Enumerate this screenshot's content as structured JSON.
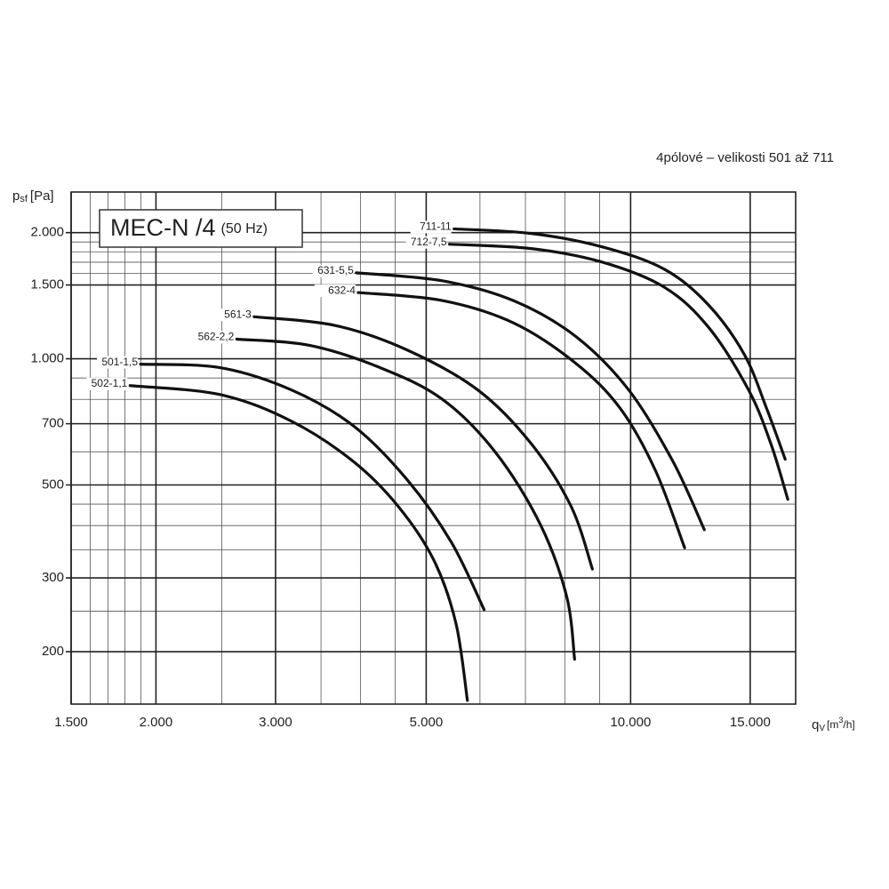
{
  "chart_data": {
    "type": "line",
    "title": "MEC-N /4",
    "title_note": "(50 Hz)",
    "subtitle": "4pólové – velikosti 501 až 711",
    "y_label": {
      "main": "p",
      "sub": "sf",
      "unit": "[Pa]"
    },
    "x_label": {
      "main": "q",
      "sub": "V",
      "unit_a": "[m",
      "sup": "3",
      "unit_b": "/h]"
    },
    "log_x": true,
    "log_y": true,
    "grid": true,
    "xlim": [
      1500,
      17500
    ],
    "ylim": [
      150,
      2500
    ],
    "xticks": [
      {
        "value": 1500,
        "label": "1.500"
      },
      {
        "value": 2000,
        "label": "2.000"
      },
      {
        "value": 3000,
        "label": "3.000"
      },
      {
        "value": 5000,
        "label": "5.000"
      },
      {
        "value": 10000,
        "label": "10.000"
      },
      {
        "value": 15000,
        "label": "15.000"
      }
    ],
    "yticks": [
      200,
      300,
      500,
      700,
      {
        "value": 1000,
        "label": "1.000"
      },
      {
        "value": 1500,
        "label": "1.500"
      },
      {
        "value": 2000,
        "label": "2.000"
      }
    ],
    "xgrid": [
      1600,
      1700,
      1800,
      1900,
      2500,
      3500,
      4000,
      4500,
      6000,
      7000,
      8000,
      9000
    ],
    "ygrid": [
      250,
      350,
      400,
      450,
      600,
      800,
      900,
      1600,
      1700,
      1800,
      1900
    ],
    "series": [
      {
        "name": "502-1,1",
        "color": "#111111",
        "x": [
          1832,
          2490,
          3170,
          3910,
          4550,
          5130,
          5530,
          5750
        ],
        "values": [
          863,
          821,
          709,
          568,
          444,
          331,
          234,
          153
        ]
      },
      {
        "name": "501-1,5",
        "color": "#111111",
        "x": [
          1898,
          2490,
          3170,
          3910,
          4685,
          5445,
          6085
        ],
        "values": [
          971,
          952,
          842,
          691,
          515,
          365,
          252
        ]
      },
      {
        "name": "562-2,2",
        "color": "#111111",
        "x": [
          2630,
          3365,
          4280,
          5280,
          6330,
          7360,
          8050,
          8270
        ],
        "values": [
          1114,
          1077,
          952,
          801,
          597,
          403,
          271,
          192
        ]
      },
      {
        "name": "561-3",
        "color": "#111111",
        "x": [
          2790,
          3680,
          4685,
          5960,
          7140,
          8175,
          8785
        ],
        "values": [
          1260,
          1200,
          1050,
          842,
          627,
          444,
          315
        ]
      },
      {
        "name": "632-4",
        "color": "#111111",
        "x": [
          3970,
          5280,
          6720,
          8300,
          9645,
          10880,
          12010
        ],
        "values": [
          1439,
          1377,
          1218,
          976,
          763,
          541,
          354
        ]
      },
      {
        "name": "631-5,5",
        "color": "#111111",
        "x": [
          3945,
          5280,
          6720,
          8300,
          9940,
          11550,
          12840
        ],
        "values": [
          1604,
          1535,
          1377,
          1131,
          842,
          568,
          391
        ]
      },
      {
        "name": "712-7,5",
        "color": "#111111",
        "x": [
          5410,
          7140,
          9080,
          11210,
          13030,
          14920,
          16090,
          17040
        ],
        "values": [
          1877,
          1832,
          1701,
          1482,
          1188,
          842,
          627,
          462
        ]
      },
      {
        "name": "711-11",
        "color": "#111111",
        "x": [
          5495,
          7140,
          9080,
          11210,
          13030,
          14700,
          15850,
          16890
        ],
        "values": [
          2042,
          1991,
          1850,
          1636,
          1343,
          1025,
          763,
          576
        ]
      }
    ]
  }
}
